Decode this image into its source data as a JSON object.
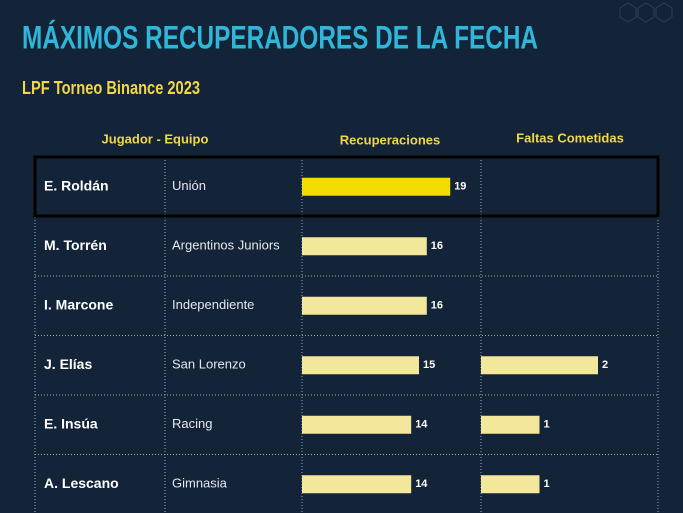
{
  "chart_data": {
    "type": "bar",
    "title": "MÁXIMOS RECUPERADORES DE LA FECHA",
    "subtitle": "LPF Torneo Binance 2023",
    "group_header": "Jugador - Equipo",
    "categories": [
      "E. Roldán",
      "M. Torrén",
      "I. Marcone",
      "J. Elías",
      "E. Insúa",
      "A. Lescano"
    ],
    "teams": [
      "Unión",
      "Argentinos Juniors",
      "Independiente",
      "San Lorenzo",
      "Racing",
      "Gimnasia"
    ],
    "highlight_color": "#f4dc00",
    "series": [
      {
        "name": "Recuperaciones",
        "color": "#f3e79b",
        "values": [
          19,
          16,
          16,
          15,
          14,
          14
        ]
      },
      {
        "name": "Faltas Cometidas",
        "color": "#f3e79b",
        "values": [
          null,
          null,
          null,
          2,
          1,
          1
        ]
      }
    ]
  }
}
